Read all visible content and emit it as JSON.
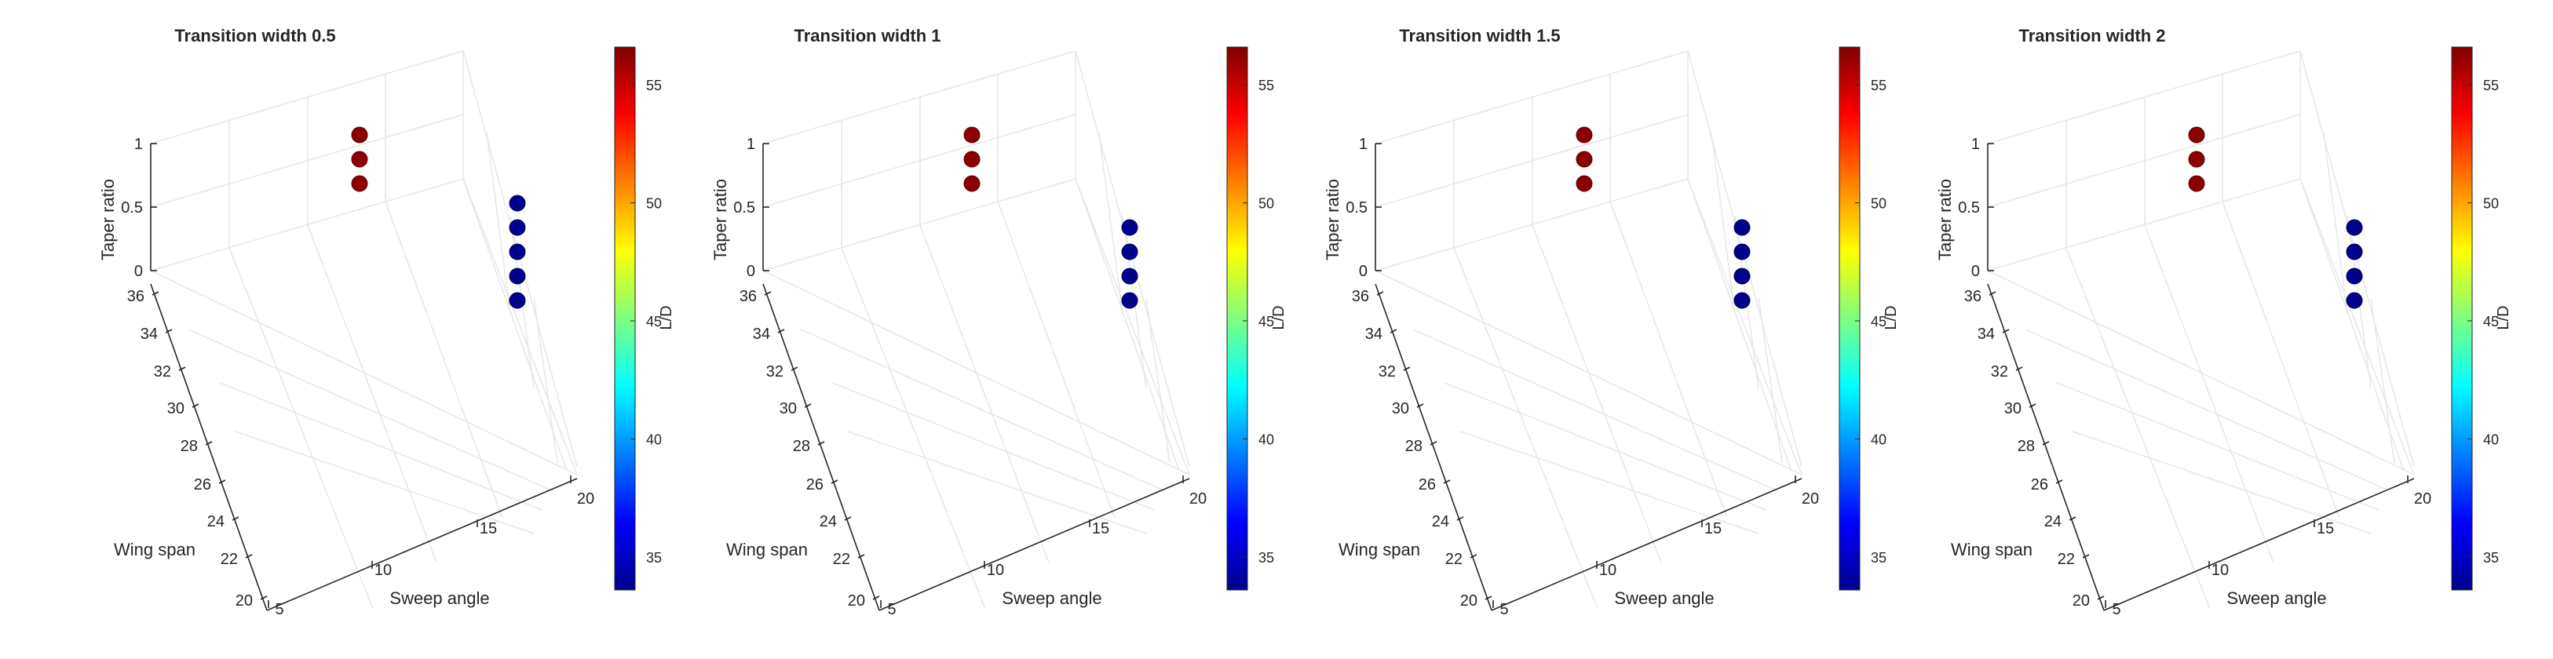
{
  "chart_data": [
    {
      "type": "scatter3d",
      "title": "Transition width 0.5",
      "xlabel": "Sweep angle",
      "ylabel": "Wing span",
      "zlabel": "Taper ratio",
      "colorbar_label": "L/D",
      "x_ticks": [
        "5",
        "10",
        "15",
        "20"
      ],
      "y_ticks": [
        "20",
        "22",
        "24",
        "26",
        "28",
        "30",
        "32",
        "34",
        "36"
      ],
      "z_ticks": [
        "0",
        "0.5",
        "1"
      ],
      "colorbar_ticks": [
        "35",
        "40",
        "45",
        "50",
        "55"
      ],
      "grid": true,
      "colormap": "jet",
      "points": [
        {
          "ld": 56,
          "color": "#8b0000"
        },
        {
          "ld": 56,
          "color": "#8b0000"
        },
        {
          "ld": 56,
          "color": "#8b0000"
        },
        {
          "ld": 34,
          "color": "#00008b"
        },
        {
          "ld": 34,
          "color": "#00008b"
        },
        {
          "ld": 34,
          "color": "#00008b"
        },
        {
          "ld": 34,
          "color": "#00008b"
        },
        {
          "ld": 34,
          "color": "#00008b"
        }
      ]
    },
    {
      "type": "scatter3d",
      "title": "Transition width 1",
      "xlabel": "Sweep angle",
      "ylabel": "Wing span",
      "zlabel": "Taper ratio",
      "colorbar_label": "L/D",
      "x_ticks": [
        "5",
        "10",
        "15",
        "20"
      ],
      "y_ticks": [
        "20",
        "22",
        "24",
        "26",
        "28",
        "30",
        "32",
        "34",
        "36"
      ],
      "z_ticks": [
        "0",
        "0.5",
        "1"
      ],
      "colorbar_ticks": [
        "35",
        "40",
        "45",
        "50",
        "55"
      ],
      "grid": true,
      "colormap": "jet",
      "points": [
        {
          "ld": 56,
          "color": "#8b0000"
        },
        {
          "ld": 56,
          "color": "#8b0000"
        },
        {
          "ld": 56,
          "color": "#8b0000"
        },
        {
          "ld": 34,
          "color": "#00008b"
        },
        {
          "ld": 34,
          "color": "#00008b"
        },
        {
          "ld": 34,
          "color": "#00008b"
        },
        {
          "ld": 34,
          "color": "#00008b"
        }
      ]
    },
    {
      "type": "scatter3d",
      "title": "Transition width 1.5",
      "xlabel": "Sweep angle",
      "ylabel": "Wing span",
      "zlabel": "Taper ratio",
      "colorbar_label": "L/D",
      "x_ticks": [
        "5",
        "10",
        "15",
        "20"
      ],
      "y_ticks": [
        "20",
        "22",
        "24",
        "26",
        "28",
        "30",
        "32",
        "34",
        "36"
      ],
      "z_ticks": [
        "0",
        "0.5",
        "1"
      ],
      "colorbar_ticks": [
        "35",
        "40",
        "45",
        "50",
        "55"
      ],
      "grid": true,
      "colormap": "jet",
      "points": [
        {
          "ld": 56,
          "color": "#8b0000"
        },
        {
          "ld": 56,
          "color": "#8b0000"
        },
        {
          "ld": 56,
          "color": "#8b0000"
        },
        {
          "ld": 34,
          "color": "#00008b"
        },
        {
          "ld": 34,
          "color": "#00008b"
        },
        {
          "ld": 34,
          "color": "#00008b"
        },
        {
          "ld": 34,
          "color": "#00008b"
        }
      ]
    },
    {
      "type": "scatter3d",
      "title": "Transition width 2",
      "xlabel": "Sweep angle",
      "ylabel": "Wing span",
      "zlabel": "Taper ratio",
      "colorbar_label": "L/D",
      "x_ticks": [
        "5",
        "10",
        "15",
        "20"
      ],
      "y_ticks": [
        "20",
        "22",
        "24",
        "26",
        "28",
        "30",
        "32",
        "34",
        "36"
      ],
      "z_ticks": [
        "0",
        "0.5",
        "1"
      ],
      "colorbar_ticks": [
        "35",
        "40",
        "45",
        "50",
        "55"
      ],
      "grid": true,
      "colormap": "jet",
      "points": [
        {
          "ld": 56,
          "color": "#8b0000"
        },
        {
          "ld": 56,
          "color": "#8b0000"
        },
        {
          "ld": 56,
          "color": "#8b0000"
        },
        {
          "ld": 34,
          "color": "#00008b"
        },
        {
          "ld": 34,
          "color": "#00008b"
        },
        {
          "ld": 34,
          "color": "#00008b"
        },
        {
          "ld": 34,
          "color": "#00008b"
        }
      ]
    }
  ],
  "colors": {
    "axis": "#262626",
    "grid": "#e6e6e6",
    "background": "#ffffff"
  }
}
